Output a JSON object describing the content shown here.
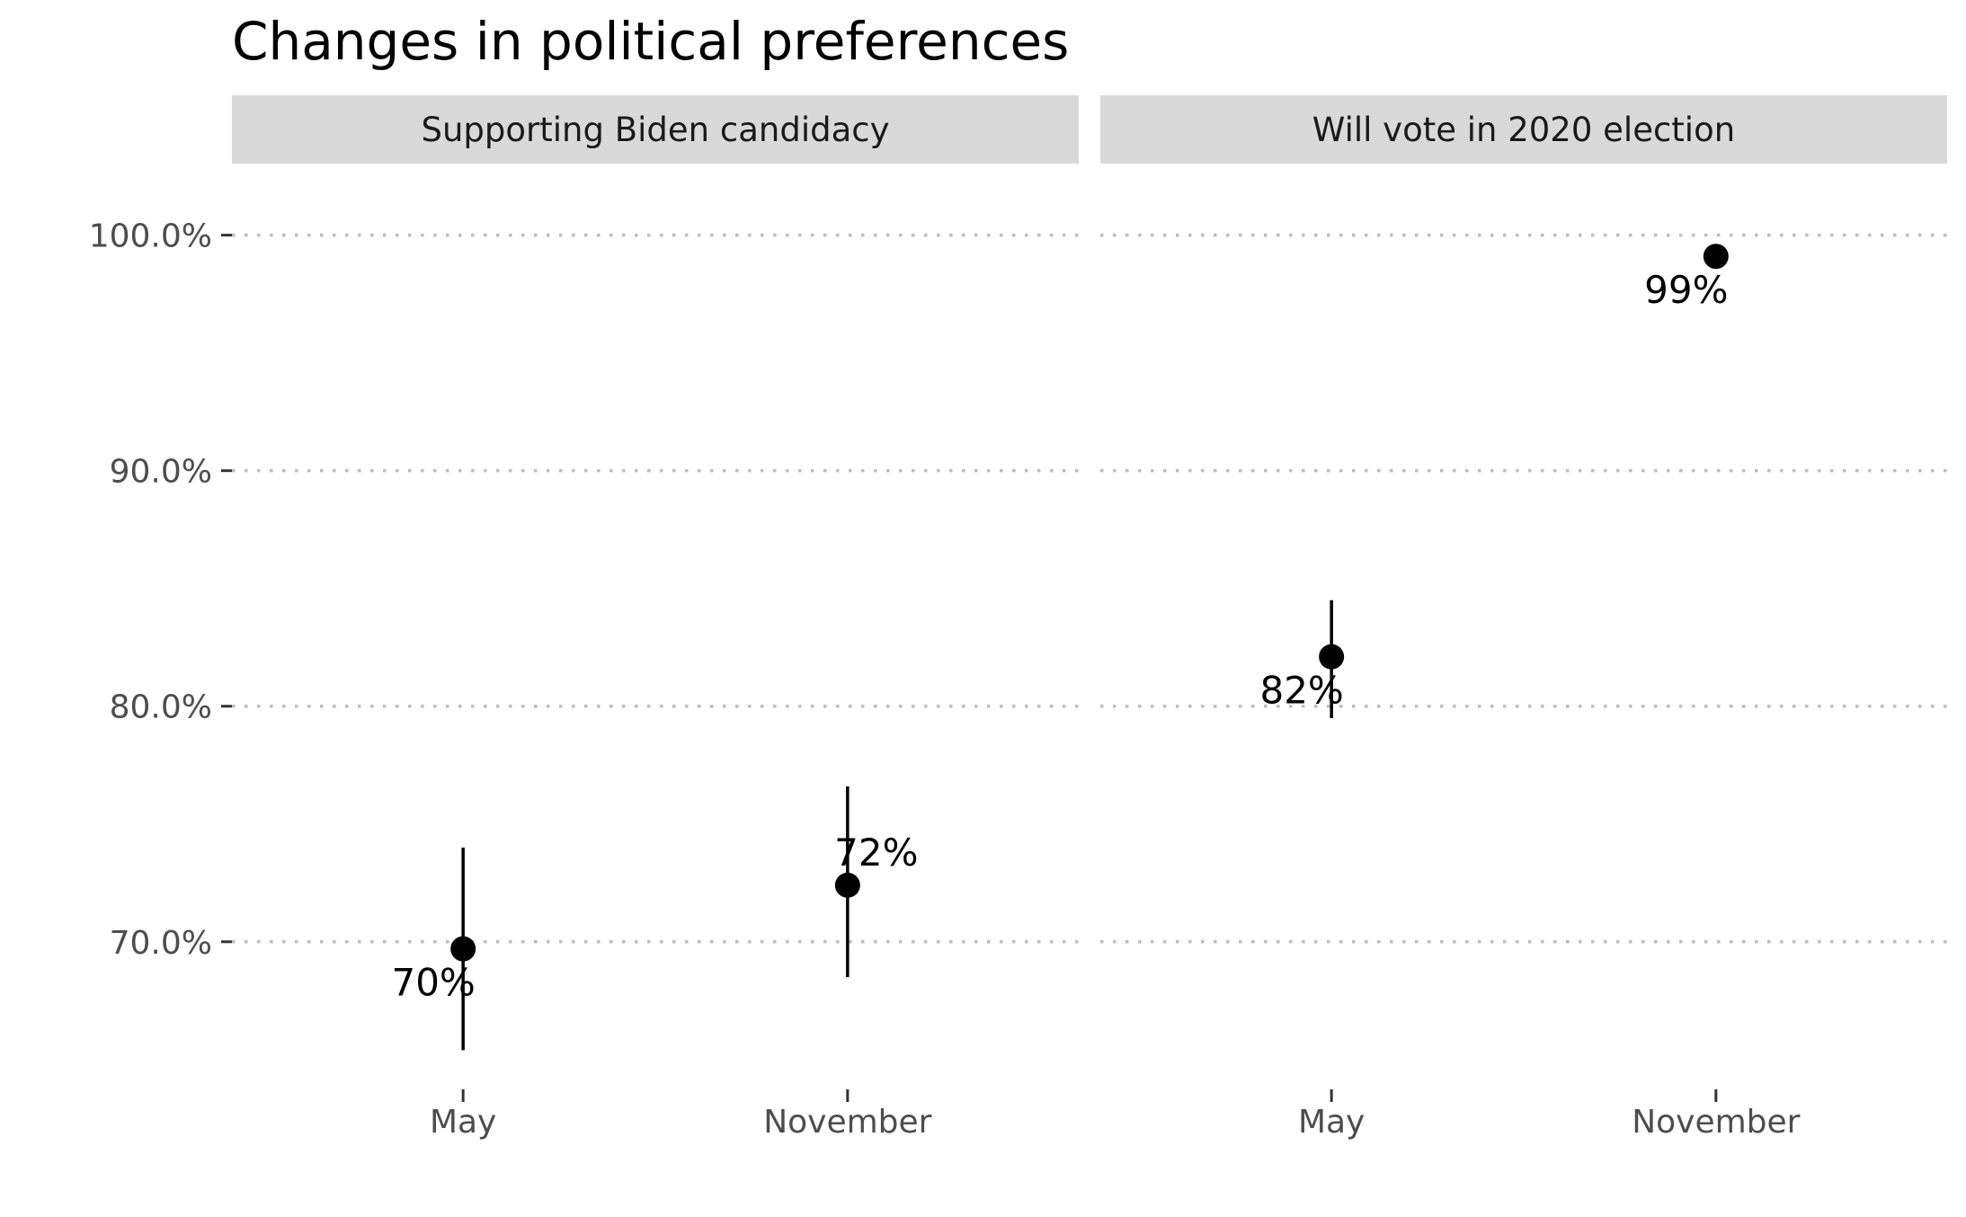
{
  "chart_data": {
    "type": "scatter",
    "title": "Changes in political preferences",
    "xlabel": "",
    "ylabel": "",
    "categories": [
      "May",
      "November"
    ],
    "ylim": [
      64,
      103
    ],
    "y_ticks": [
      70,
      80,
      90,
      100
    ],
    "y_tick_labels": [
      "70.0%",
      "80.0%",
      "90.0%",
      "100.0%"
    ],
    "grid": "horizontal dotted",
    "panels": [
      {
        "name": "Supporting Biden candidacy",
        "points": [
          {
            "x": "May",
            "y": 69.7,
            "lower": 65.4,
            "upper": 74.0,
            "label": "70%"
          },
          {
            "x": "November",
            "y": 72.4,
            "lower": 68.5,
            "upper": 76.6,
            "label": "72%"
          }
        ]
      },
      {
        "name": "Will vote in 2020 election",
        "points": [
          {
            "x": "May",
            "y": 82.1,
            "lower": 79.5,
            "upper": 84.5,
            "label": "82%"
          },
          {
            "x": "November",
            "y": 99.1,
            "lower": null,
            "upper": null,
            "label": "99%"
          }
        ]
      }
    ],
    "colors": {
      "point": "#000000",
      "strip": "#d9d9d9",
      "grid": "#bdbdbd",
      "axis_text": "#4d4d4d",
      "title": "#000000"
    }
  }
}
